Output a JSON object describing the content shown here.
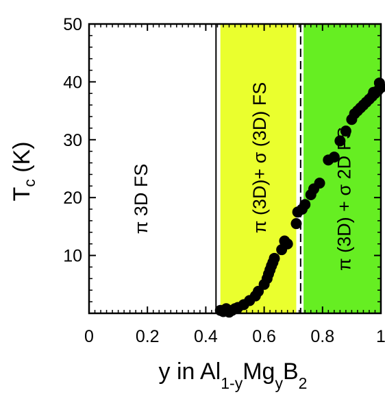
{
  "chart_data": {
    "type": "scatter",
    "xlim": [
      0,
      1
    ],
    "ylim": [
      0,
      50
    ],
    "x_ticks": [
      "0",
      "0.2",
      "0.4",
      "0.6",
      "0.8",
      "1"
    ],
    "y_ticks": [
      "10",
      "20",
      "30",
      "40",
      "50"
    ],
    "y_ticks_values": [
      10,
      20,
      30,
      40,
      50
    ],
    "x_ticks_values": [
      0,
      0.2,
      0.4,
      0.6,
      0.8,
      1
    ],
    "ylabel": {
      "main": "T",
      "sub": "c",
      "rest": " (K)"
    },
    "xlabel": {
      "p1": "y in Al",
      "s1": "1-y",
      "p2": "Mg",
      "s2": "y",
      "p3": "B",
      "s3": "2"
    },
    "regions": [
      {
        "x0": 0.45,
        "x1": 0.71,
        "color": "#eaff2e",
        "label": "π (3D)+ σ (3D) FS"
      },
      {
        "x0": 0.735,
        "x1": 1.0,
        "color": "#66ee22",
        "label": "π (3D) + σ 2D FS"
      }
    ],
    "left_region_label": "π 3D FS",
    "vlines": [
      {
        "x": 0.435,
        "style": "solid"
      },
      {
        "x": 0.725,
        "style": "dashed"
      }
    ],
    "series": [
      {
        "marker_color": "#000000",
        "points": [
          [
            0.45,
            0.5
          ],
          [
            0.46,
            0.3
          ],
          [
            0.47,
            0.8
          ],
          [
            0.48,
            0.2
          ],
          [
            0.49,
            0.5
          ],
          [
            0.5,
            0.8
          ],
          [
            0.51,
            1.0
          ],
          [
            0.53,
            1.5
          ],
          [
            0.55,
            2.2
          ],
          [
            0.57,
            3.0
          ],
          [
            0.58,
            3.8
          ],
          [
            0.6,
            5.0
          ],
          [
            0.61,
            6.0
          ],
          [
            0.615,
            6.8
          ],
          [
            0.62,
            7.5
          ],
          [
            0.625,
            8.2
          ],
          [
            0.63,
            8.8
          ],
          [
            0.635,
            9.5
          ],
          [
            0.66,
            11.0
          ],
          [
            0.67,
            12.5
          ],
          [
            0.68,
            12.0
          ],
          [
            0.71,
            15.5
          ],
          [
            0.715,
            17.5
          ],
          [
            0.73,
            18.0
          ],
          [
            0.74,
            18.8
          ],
          [
            0.76,
            20.5
          ],
          [
            0.77,
            21.5
          ],
          [
            0.79,
            22.5
          ],
          [
            0.82,
            26.5
          ],
          [
            0.84,
            27.0
          ],
          [
            0.86,
            29.8
          ],
          [
            0.88,
            31.5
          ],
          [
            0.9,
            33.5
          ],
          [
            0.91,
            34.5
          ],
          [
            0.92,
            35.0
          ],
          [
            0.93,
            35.5
          ],
          [
            0.94,
            36.0
          ],
          [
            0.95,
            36.5
          ],
          [
            0.96,
            37.0
          ],
          [
            0.97,
            37.5
          ],
          [
            0.98,
            38.0
          ],
          [
            0.99,
            38.5
          ],
          [
            1.0,
            39.0
          ],
          [
            0.995,
            39.8
          ],
          [
            0.975,
            38.2
          ]
        ]
      }
    ]
  }
}
